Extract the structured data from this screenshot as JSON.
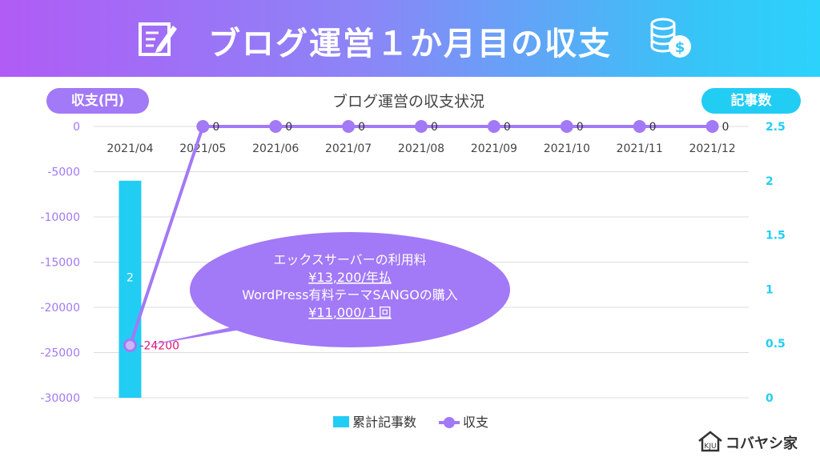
{
  "header": {
    "title": "ブログ運営１か月目の収支",
    "colors": {
      "left": "#b05cf5",
      "right": "#2bd3fb"
    }
  },
  "axis_left_label": "収支(円)",
  "axis_right_label": "記事数",
  "chart_data": {
    "type": "bar+line",
    "title": "ブログ運営の収支状況",
    "categories": [
      "2021/04",
      "2021/05",
      "2021/06",
      "2021/07",
      "2021/08",
      "2021/09",
      "2021/10",
      "2021/11",
      "2021/12"
    ],
    "series": [
      {
        "name": "累計記事数",
        "type": "bar",
        "axis": "right",
        "values": [
          2,
          null,
          null,
          null,
          null,
          null,
          null,
          null,
          null
        ],
        "color": "#22cdf4"
      },
      {
        "name": "収支",
        "type": "line",
        "axis": "left",
        "values": [
          -24200,
          0,
          0,
          0,
          0,
          0,
          0,
          0,
          0
        ],
        "color": "#a279f6"
      }
    ],
    "bar_labels": [
      "2"
    ],
    "line_labels": [
      "-24200",
      "0",
      "0",
      "0",
      "0",
      "0",
      "0",
      "0",
      "0"
    ],
    "y_left": {
      "range": [
        -30000,
        0
      ],
      "ticks": [
        "0",
        "-5000",
        "-10000",
        "-15000",
        "-20000",
        "-25000",
        "-30000"
      ]
    },
    "y_right": {
      "range": [
        0,
        2.5
      ],
      "ticks": [
        "2.5",
        "2",
        "1.5",
        "1",
        "0.5",
        "0"
      ]
    },
    "legend": [
      "累計記事数",
      "収支"
    ],
    "annotation": {
      "lines": [
        "エックスサーバーの利用料",
        "¥13,200/年払",
        "WordPress有料テーマSANGOの購入",
        "¥11,000/１回"
      ],
      "underlined": [
        false,
        true,
        false,
        true
      ]
    }
  },
  "footer": {
    "brand": "コバヤシ家"
  }
}
